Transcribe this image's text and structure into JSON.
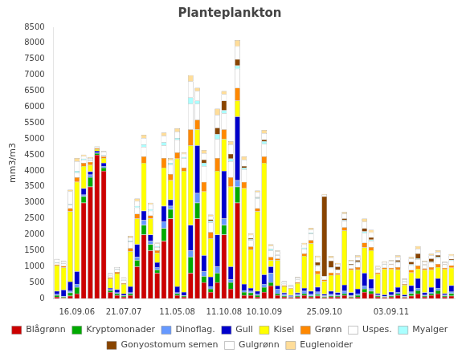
{
  "chart_data": {
    "type": "bar",
    "title": "Planteplankton",
    "ylabel": "mm3/m3",
    "stacked": true,
    "grid": false,
    "legend": "bottom",
    "ylim": [
      0,
      8500
    ],
    "yticks": [
      0,
      500,
      1000,
      1500,
      2000,
      2500,
      3000,
      3500,
      4000,
      4500,
      5000,
      5500,
      6000,
      6500,
      7000,
      7500,
      8000,
      8500
    ],
    "categories": [
      null,
      null,
      null,
      "16.09.06",
      null,
      null,
      null,
      null,
      null,
      null,
      "21.07.07",
      null,
      null,
      null,
      null,
      null,
      null,
      null,
      "11.05.08",
      null,
      null,
      null,
      null,
      null,
      null,
      "11.10.08",
      null,
      null,
      null,
      null,
      null,
      "10.10.09",
      null,
      null,
      null,
      null,
      null,
      null,
      null,
      null,
      "25.09.10",
      null,
      null,
      null,
      null,
      null,
      null,
      null,
      null,
      null,
      "03.09.11",
      null,
      null,
      null,
      null,
      null,
      null,
      null,
      null,
      null
    ],
    "series": [
      {
        "name": "Blågrønn",
        "color": "#CC0000",
        "values": [
          50,
          20,
          80,
          150,
          3000,
          3500,
          4500,
          4000,
          200,
          100,
          50,
          100,
          1000,
          2000,
          1500,
          800,
          1800,
          2500,
          100,
          50,
          800,
          2500,
          500,
          200,
          500,
          2000,
          300,
          3000,
          100,
          100,
          50,
          200,
          400,
          100,
          50,
          30,
          50,
          100,
          50,
          80,
          30,
          50,
          50,
          100,
          30,
          50,
          200,
          150,
          50,
          30,
          50,
          100,
          30,
          80,
          150,
          50,
          100,
          150,
          50,
          80
        ]
      },
      {
        "name": "Kryptomonader",
        "color": "#00AA00",
        "values": [
          50,
          30,
          100,
          200,
          200,
          300,
          50,
          100,
          50,
          50,
          30,
          50,
          200,
          300,
          200,
          100,
          400,
          300,
          50,
          30,
          500,
          500,
          200,
          100,
          300,
          300,
          200,
          500,
          100,
          80,
          50,
          150,
          100,
          50,
          30,
          20,
          30,
          50,
          30,
          50,
          30,
          30,
          30,
          50,
          30,
          50,
          100,
          80,
          30,
          20,
          30,
          50,
          20,
          80,
          100,
          30,
          50,
          100,
          30,
          80
        ]
      },
      {
        "name": "Dinoflag.",
        "color": "#6699FF",
        "values": [
          30,
          20,
          50,
          100,
          50,
          80,
          30,
          50,
          30,
          30,
          20,
          30,
          100,
          150,
          100,
          80,
          200,
          100,
          30,
          20,
          200,
          300,
          150,
          80,
          200,
          200,
          100,
          200,
          50,
          50,
          30,
          100,
          300,
          150,
          50,
          30,
          50,
          80,
          50,
          80,
          30,
          50,
          30,
          80,
          30,
          50,
          100,
          80,
          30,
          20,
          30,
          50,
          20,
          50,
          80,
          30,
          50,
          80,
          30,
          50
        ]
      },
      {
        "name": "Gull",
        "color": "#0000CC",
        "values": [
          100,
          200,
          300,
          400,
          200,
          100,
          50,
          100,
          50,
          100,
          50,
          200,
          400,
          300,
          200,
          150,
          500,
          200,
          200,
          100,
          800,
          1500,
          500,
          300,
          1000,
          1500,
          400,
          2000,
          200,
          100,
          100,
          300,
          200,
          100,
          50,
          30,
          50,
          100,
          100,
          150,
          50,
          100,
          80,
          200,
          100,
          150,
          400,
          300,
          50,
          50,
          100,
          150,
          50,
          200,
          300,
          80,
          150,
          300,
          50,
          200
        ]
      },
      {
        "name": "Kisel",
        "color": "#FFFF00",
        "values": [
          800,
          700,
          2200,
          2800,
          700,
          200,
          50,
          150,
          300,
          500,
          300,
          1100,
          800,
          1500,
          500,
          300,
          1200,
          600,
          4000,
          3800,
          2500,
          500,
          2000,
          1200,
          2000,
          1000,
          2500,
          500,
          3000,
          1200,
          2500,
          3500,
          200,
          800,
          200,
          200,
          300,
          1000,
          1500,
          400,
          400,
          500,
          550,
          1700,
          700,
          600,
          800,
          900,
          600,
          800,
          700,
          550,
          300,
          400,
          300,
          700,
          550,
          350,
          750,
          550
        ]
      },
      {
        "name": "Grønn",
        "color": "#FF8800",
        "values": [
          30,
          50,
          100,
          150,
          100,
          100,
          30,
          50,
          30,
          50,
          30,
          100,
          150,
          200,
          100,
          80,
          300,
          200,
          200,
          100,
          500,
          300,
          300,
          200,
          400,
          300,
          300,
          400,
          200,
          100,
          100,
          200,
          100,
          50,
          30,
          20,
          30,
          80,
          100,
          100,
          50,
          80,
          50,
          100,
          50,
          80,
          150,
          100,
          50,
          50,
          50,
          80,
          30,
          80,
          100,
          50,
          80,
          100,
          50,
          80
        ]
      },
      {
        "name": "Uspes.",
        "color": "#FFFFFF",
        "values": [
          50,
          80,
          100,
          150,
          100,
          50,
          20,
          30,
          50,
          80,
          100,
          200,
          200,
          300,
          150,
          100,
          400,
          300,
          400,
          300,
          800,
          500,
          500,
          300,
          600,
          500,
          500,
          600,
          400,
          200,
          300,
          400,
          200,
          100,
          50,
          50,
          80,
          150,
          200,
          150,
          100,
          150,
          100,
          200,
          100,
          150,
          300,
          200,
          100,
          100,
          100,
          150,
          80,
          150,
          200,
          100,
          150,
          200,
          100,
          150
        ]
      },
      {
        "name": "Myalger",
        "color": "#AAFFFF",
        "values": [
          20,
          10,
          30,
          50,
          30,
          20,
          10,
          20,
          10,
          20,
          10,
          30,
          50,
          80,
          50,
          30,
          100,
          50,
          50,
          30,
          200,
          100,
          100,
          50,
          150,
          100,
          80,
          100,
          50,
          30,
          30,
          80,
          50,
          20,
          10,
          10,
          10,
          30,
          30,
          30,
          10,
          20,
          10,
          30,
          10,
          20,
          50,
          30,
          10,
          10,
          10,
          20,
          10,
          30,
          30,
          10,
          20,
          30,
          10,
          20
        ]
      },
      {
        "name": "Gonyostomum semen",
        "color": "#884400",
        "values": [
          0,
          0,
          0,
          0,
          0,
          0,
          0,
          0,
          0,
          0,
          0,
          0,
          0,
          0,
          0,
          0,
          0,
          0,
          0,
          0,
          0,
          0,
          100,
          50,
          200,
          300,
          150,
          200,
          50,
          30,
          20,
          50,
          0,
          0,
          0,
          0,
          0,
          0,
          0,
          100,
          2500,
          200,
          100,
          50,
          30,
          50,
          100,
          80,
          20,
          10,
          20,
          50,
          10,
          80,
          150,
          20,
          100,
          50,
          10,
          30
        ]
      },
      {
        "name": "Gulgrønn",
        "color": "#FFFFFF",
        "values": [
          100,
          50,
          400,
          300,
          80,
          50,
          20,
          100,
          50,
          50,
          50,
          100,
          150,
          200,
          150,
          80,
          200,
          100,
          200,
          100,
          500,
          300,
          200,
          100,
          400,
          200,
          300,
          400,
          200,
          100,
          150,
          200,
          100,
          100,
          50,
          30,
          50,
          100,
          100,
          150,
          50,
          100,
          80,
          150,
          100,
          100,
          200,
          150,
          50,
          50,
          80,
          100,
          50,
          100,
          150,
          80,
          100,
          100,
          50,
          100
        ]
      },
      {
        "name": "Euglenoider",
        "color": "#FFDD99",
        "values": [
          10,
          20,
          50,
          100,
          50,
          30,
          10,
          20,
          20,
          10,
          20,
          50,
          80,
          100,
          50,
          30,
          100,
          50,
          100,
          50,
          200,
          100,
          100,
          50,
          200,
          100,
          100,
          200,
          100,
          50,
          50,
          100,
          50,
          30,
          20,
          10,
          20,
          50,
          50,
          50,
          20,
          50,
          30,
          50,
          30,
          50,
          100,
          80,
          30,
          20,
          30,
          50,
          20,
          50,
          80,
          30,
          50,
          50,
          20,
          50
        ]
      }
    ]
  }
}
